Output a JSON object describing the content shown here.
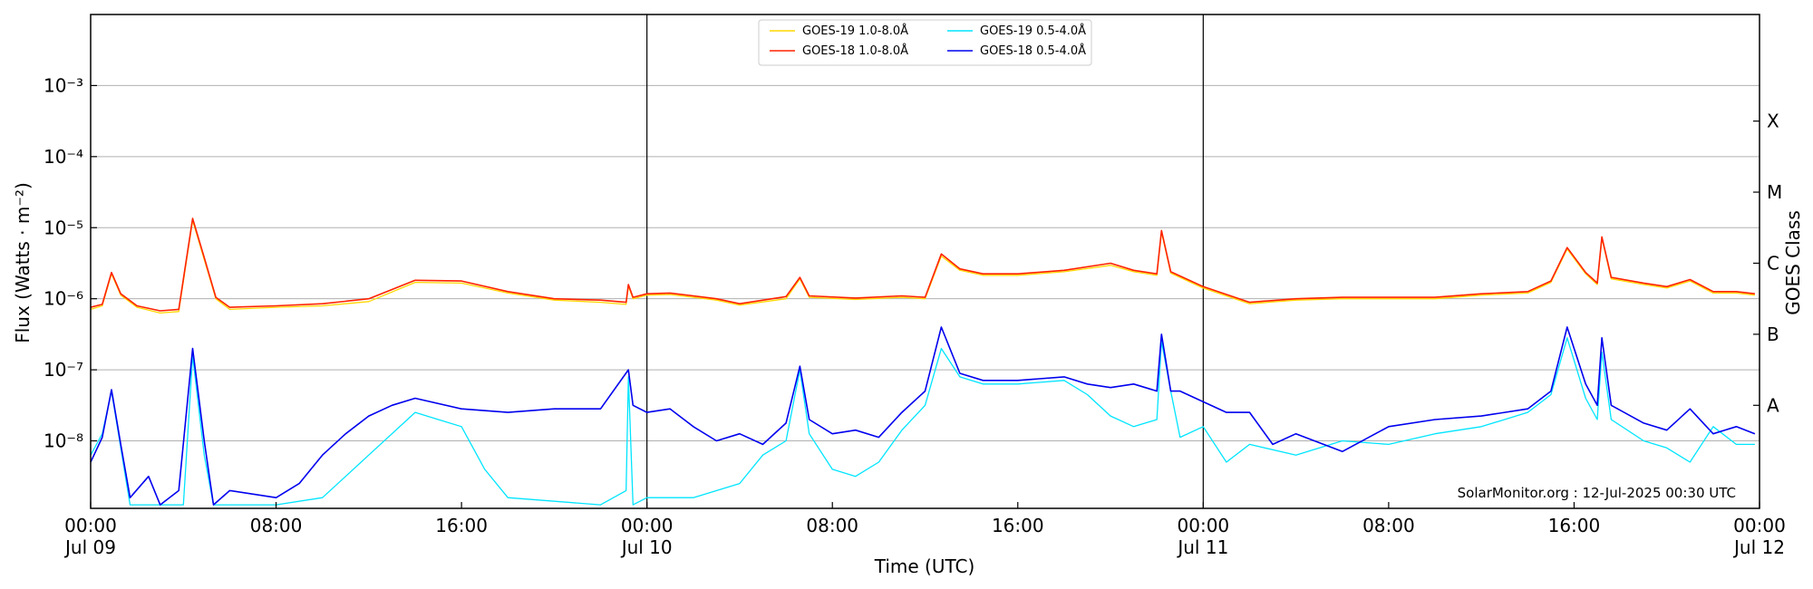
{
  "chart_data": {
    "type": "line",
    "title": "",
    "xlabel": "Time (UTC)",
    "ylabel": "Flux (Watts · m⁻²)",
    "ylabel_right": "GOES Class",
    "y_scale": "log",
    "ylim_log10": [
      -8.95,
      -2.0
    ],
    "xlim_hours": [
      0,
      72
    ],
    "grid": "horizontal at each decade",
    "y_ticks": [
      {
        "value": -8,
        "label": "10⁻⁸"
      },
      {
        "value": -7,
        "label": "10⁻⁷"
      },
      {
        "value": -6,
        "label": "10⁻⁶"
      },
      {
        "value": -5,
        "label": "10⁻⁵"
      },
      {
        "value": -4,
        "label": "10⁻⁴"
      },
      {
        "value": -3,
        "label": "10⁻³"
      }
    ],
    "class_ticks": [
      {
        "value": -7.5,
        "label": "A"
      },
      {
        "value": -6.5,
        "label": "B"
      },
      {
        "value": -5.5,
        "label": "C"
      },
      {
        "value": -4.5,
        "label": "M"
      },
      {
        "value": -3.5,
        "label": "X"
      }
    ],
    "x_ticks": [
      {
        "hour": 0,
        "line1": "00:00",
        "line2": "Jul 09"
      },
      {
        "hour": 8,
        "line1": "08:00",
        "line2": ""
      },
      {
        "hour": 16,
        "line1": "16:00",
        "line2": ""
      },
      {
        "hour": 24,
        "line1": "00:00",
        "line2": "Jul 10"
      },
      {
        "hour": 32,
        "line1": "08:00",
        "line2": ""
      },
      {
        "hour": 40,
        "line1": "16:00",
        "line2": ""
      },
      {
        "hour": 48,
        "line1": "00:00",
        "line2": "Jul 11"
      },
      {
        "hour": 56,
        "line1": "08:00",
        "line2": ""
      },
      {
        "hour": 64,
        "line1": "16:00",
        "line2": ""
      },
      {
        "hour": 72,
        "line1": "00:00",
        "line2": "Jul 12"
      }
    ],
    "day_dividers_hours": [
      24,
      48
    ],
    "footer": "SolarMonitor.org : 12-Jul-2025 00:30 UTC",
    "series": [
      {
        "name": "GOES-19 1.0-8.0Å",
        "color": "#ffd700",
        "width": 1.3,
        "points": [
          [
            0,
            -6.15
          ],
          [
            0.5,
            -6.1
          ],
          [
            0.9,
            -5.65
          ],
          [
            1.3,
            -5.95
          ],
          [
            2,
            -6.12
          ],
          [
            3,
            -6.2
          ],
          [
            3.8,
            -6.18
          ],
          [
            4.4,
            -4.9
          ],
          [
            4.9,
            -5.45
          ],
          [
            5.4,
            -6.0
          ],
          [
            6,
            -6.15
          ],
          [
            8,
            -6.12
          ],
          [
            10,
            -6.1
          ],
          [
            12,
            -6.04
          ],
          [
            14,
            -5.77
          ],
          [
            16,
            -5.78
          ],
          [
            18,
            -5.92
          ],
          [
            20,
            -6.02
          ],
          [
            22,
            -6.05
          ],
          [
            23.1,
            -6.08
          ],
          [
            23.2,
            -5.82
          ],
          [
            23.4,
            -6.0
          ],
          [
            24,
            -5.95
          ],
          [
            25,
            -5.94
          ],
          [
            27,
            -6.02
          ],
          [
            28,
            -6.09
          ],
          [
            30,
            -6.0
          ],
          [
            30.6,
            -5.72
          ],
          [
            31,
            -5.98
          ],
          [
            33,
            -6.01
          ],
          [
            35,
            -5.98
          ],
          [
            36,
            -6.0
          ],
          [
            36.7,
            -5.4
          ],
          [
            37.5,
            -5.6
          ],
          [
            38.5,
            -5.67
          ],
          [
            40,
            -5.67
          ],
          [
            42,
            -5.62
          ],
          [
            44,
            -5.53
          ],
          [
            45,
            -5.62
          ],
          [
            46,
            -5.67
          ],
          [
            46.2,
            -5.06
          ],
          [
            46.6,
            -5.64
          ],
          [
            47,
            -5.7
          ],
          [
            48,
            -5.85
          ],
          [
            50,
            -6.07
          ],
          [
            52,
            -6.02
          ],
          [
            54,
            -6.0
          ],
          [
            56,
            -6.0
          ],
          [
            58,
            -6.0
          ],
          [
            60,
            -5.95
          ],
          [
            62,
            -5.92
          ],
          [
            63,
            -5.77
          ],
          [
            63.7,
            -5.3
          ],
          [
            64.5,
            -5.65
          ],
          [
            65,
            -5.8
          ],
          [
            65.2,
            -5.15
          ],
          [
            65.6,
            -5.72
          ],
          [
            67,
            -5.8
          ],
          [
            68,
            -5.85
          ],
          [
            69,
            -5.75
          ],
          [
            70,
            -5.92
          ],
          [
            71,
            -5.92
          ],
          [
            71.8,
            -5.95
          ]
        ]
      },
      {
        "name": "GOES-18 1.0-8.0Å",
        "color": "#ff2200",
        "width": 1.6,
        "points": [
          [
            0,
            -6.12
          ],
          [
            0.5,
            -6.08
          ],
          [
            0.9,
            -5.63
          ],
          [
            1.3,
            -5.93
          ],
          [
            2,
            -6.1
          ],
          [
            3,
            -6.17
          ],
          [
            3.8,
            -6.15
          ],
          [
            4.4,
            -4.87
          ],
          [
            4.9,
            -5.42
          ],
          [
            5.4,
            -5.98
          ],
          [
            6,
            -6.12
          ],
          [
            8,
            -6.1
          ],
          [
            10,
            -6.07
          ],
          [
            12,
            -6.0
          ],
          [
            14,
            -5.74
          ],
          [
            16,
            -5.75
          ],
          [
            18,
            -5.9
          ],
          [
            20,
            -6.0
          ],
          [
            22,
            -6.02
          ],
          [
            23.1,
            -6.05
          ],
          [
            23.2,
            -5.8
          ],
          [
            23.4,
            -5.98
          ],
          [
            24,
            -5.93
          ],
          [
            25,
            -5.92
          ],
          [
            27,
            -6.0
          ],
          [
            28,
            -6.07
          ],
          [
            30,
            -5.97
          ],
          [
            30.6,
            -5.7
          ],
          [
            31,
            -5.96
          ],
          [
            33,
            -5.99
          ],
          [
            35,
            -5.96
          ],
          [
            36,
            -5.98
          ],
          [
            36.7,
            -5.37
          ],
          [
            37.5,
            -5.58
          ],
          [
            38.5,
            -5.65
          ],
          [
            40,
            -5.65
          ],
          [
            42,
            -5.6
          ],
          [
            44,
            -5.5
          ],
          [
            45,
            -5.6
          ],
          [
            46,
            -5.65
          ],
          [
            46.2,
            -5.04
          ],
          [
            46.6,
            -5.62
          ],
          [
            47,
            -5.68
          ],
          [
            48,
            -5.83
          ],
          [
            50,
            -6.05
          ],
          [
            52,
            -6.0
          ],
          [
            54,
            -5.98
          ],
          [
            56,
            -5.98
          ],
          [
            58,
            -5.98
          ],
          [
            60,
            -5.93
          ],
          [
            62,
            -5.9
          ],
          [
            63,
            -5.75
          ],
          [
            63.7,
            -5.28
          ],
          [
            64.5,
            -5.63
          ],
          [
            65,
            -5.78
          ],
          [
            65.2,
            -5.13
          ],
          [
            65.6,
            -5.7
          ],
          [
            67,
            -5.78
          ],
          [
            68,
            -5.83
          ],
          [
            69,
            -5.73
          ],
          [
            70,
            -5.9
          ],
          [
            71,
            -5.9
          ],
          [
            71.8,
            -5.93
          ]
        ]
      },
      {
        "name": "GOES-19 0.5-4.0Å",
        "color": "#00e5ff",
        "width": 1.3,
        "points": [
          [
            0,
            -8.2
          ],
          [
            0.5,
            -7.9
          ],
          [
            0.9,
            -7.3
          ],
          [
            1.3,
            -8.1
          ],
          [
            1.7,
            -8.9
          ],
          [
            3,
            -8.9
          ],
          [
            4,
            -8.9
          ],
          [
            4.4,
            -6.8
          ],
          [
            4.9,
            -8.2
          ],
          [
            5.3,
            -8.9
          ],
          [
            8,
            -8.9
          ],
          [
            10,
            -8.8
          ],
          [
            11,
            -8.5
          ],
          [
            12,
            -8.2
          ],
          [
            14,
            -7.6
          ],
          [
            15,
            -7.7
          ],
          [
            16,
            -7.8
          ],
          [
            17,
            -8.4
          ],
          [
            18,
            -8.8
          ],
          [
            22,
            -8.9
          ],
          [
            23.1,
            -8.7
          ],
          [
            23.2,
            -7.1
          ],
          [
            23.4,
            -8.9
          ],
          [
            24,
            -8.8
          ],
          [
            26,
            -8.8
          ],
          [
            28,
            -8.6
          ],
          [
            29,
            -8.2
          ],
          [
            30,
            -8.0
          ],
          [
            30.6,
            -7.0
          ],
          [
            31,
            -7.9
          ],
          [
            32,
            -8.4
          ],
          [
            33,
            -8.5
          ],
          [
            34,
            -8.3
          ],
          [
            35,
            -7.85
          ],
          [
            36,
            -7.5
          ],
          [
            36.7,
            -6.7
          ],
          [
            37.5,
            -7.1
          ],
          [
            38.5,
            -7.2
          ],
          [
            40,
            -7.2
          ],
          [
            42,
            -7.15
          ],
          [
            43,
            -7.35
          ],
          [
            44,
            -7.65
          ],
          [
            45,
            -7.8
          ],
          [
            46,
            -7.7
          ],
          [
            46.2,
            -6.6
          ],
          [
            46.6,
            -7.3
          ],
          [
            47,
            -7.95
          ],
          [
            48,
            -7.8
          ],
          [
            49,
            -8.3
          ],
          [
            50,
            -8.05
          ],
          [
            52,
            -8.2
          ],
          [
            54,
            -8.0
          ],
          [
            56,
            -8.05
          ],
          [
            58,
            -7.9
          ],
          [
            60,
            -7.8
          ],
          [
            62,
            -7.6
          ],
          [
            63,
            -7.35
          ],
          [
            63.7,
            -6.55
          ],
          [
            64.5,
            -7.4
          ],
          [
            65,
            -7.7
          ],
          [
            65.2,
            -6.75
          ],
          [
            65.6,
            -7.7
          ],
          [
            67,
            -8.0
          ],
          [
            68,
            -8.1
          ],
          [
            69,
            -8.3
          ],
          [
            70,
            -7.8
          ],
          [
            71,
            -8.05
          ],
          [
            71.8,
            -8.05
          ]
        ]
      },
      {
        "name": "GOES-18 0.5-4.0Å",
        "color": "#0000ee",
        "width": 1.6,
        "points": [
          [
            0,
            -8.3
          ],
          [
            0.5,
            -7.95
          ],
          [
            0.9,
            -7.28
          ],
          [
            1.3,
            -8.05
          ],
          [
            1.7,
            -8.8
          ],
          [
            2.5,
            -8.5
          ],
          [
            3,
            -8.9
          ],
          [
            3.8,
            -8.7
          ],
          [
            4.4,
            -6.7
          ],
          [
            4.9,
            -8.0
          ],
          [
            5.3,
            -8.9
          ],
          [
            6,
            -8.7
          ],
          [
            8,
            -8.8
          ],
          [
            9,
            -8.6
          ],
          [
            10,
            -8.2
          ],
          [
            11,
            -7.9
          ],
          [
            12,
            -7.65
          ],
          [
            13,
            -7.5
          ],
          [
            14,
            -7.4
          ],
          [
            16,
            -7.55
          ],
          [
            18,
            -7.6
          ],
          [
            20,
            -7.55
          ],
          [
            22,
            -7.55
          ],
          [
            23.2,
            -7.0
          ],
          [
            23.4,
            -7.5
          ],
          [
            24,
            -7.6
          ],
          [
            25,
            -7.55
          ],
          [
            26,
            -7.8
          ],
          [
            27,
            -8.0
          ],
          [
            28,
            -7.9
          ],
          [
            29,
            -8.05
          ],
          [
            30,
            -7.75
          ],
          [
            30.6,
            -6.95
          ],
          [
            31,
            -7.7
          ],
          [
            32,
            -7.9
          ],
          [
            33,
            -7.85
          ],
          [
            34,
            -7.95
          ],
          [
            35,
            -7.6
          ],
          [
            36,
            -7.3
          ],
          [
            36.7,
            -6.4
          ],
          [
            37.5,
            -7.05
          ],
          [
            38.5,
            -7.15
          ],
          [
            40,
            -7.15
          ],
          [
            42,
            -7.1
          ],
          [
            43,
            -7.2
          ],
          [
            44,
            -7.25
          ],
          [
            45,
            -7.2
          ],
          [
            46,
            -7.3
          ],
          [
            46.2,
            -6.5
          ],
          [
            46.6,
            -7.3
          ],
          [
            47,
            -7.3
          ],
          [
            48,
            -7.45
          ],
          [
            49,
            -7.6
          ],
          [
            50,
            -7.6
          ],
          [
            51,
            -8.05
          ],
          [
            52,
            -7.9
          ],
          [
            54,
            -8.15
          ],
          [
            56,
            -7.8
          ],
          [
            58,
            -7.7
          ],
          [
            60,
            -7.65
          ],
          [
            62,
            -7.55
          ],
          [
            63,
            -7.3
          ],
          [
            63.7,
            -6.4
          ],
          [
            64.5,
            -7.2
          ],
          [
            65,
            -7.5
          ],
          [
            65.2,
            -6.55
          ],
          [
            65.6,
            -7.5
          ],
          [
            67,
            -7.75
          ],
          [
            68,
            -7.85
          ],
          [
            69,
            -7.55
          ],
          [
            70,
            -7.9
          ],
          [
            71,
            -7.8
          ],
          [
            71.8,
            -7.9
          ]
        ]
      }
    ]
  }
}
